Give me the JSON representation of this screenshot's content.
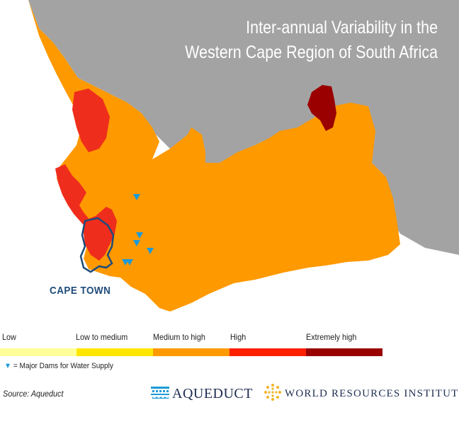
{
  "map": {
    "title_line1": "Inter-annual Variability in the",
    "title_line2": "Western Cape Region of South Africa",
    "city_label": "CAPE TOWN",
    "colors": {
      "land_outside": "#a3a3a3",
      "ocean": "#ffffff",
      "medium_to_high": "#ff9900",
      "high": "#ef2d1c",
      "extremely_high": "#9b0000",
      "cape_town_outline": "#1e4b7a",
      "dam": "#1c9ad6"
    },
    "dams_count": 6
  },
  "legend": {
    "categories": [
      {
        "label": "Low",
        "color": "#ffff99"
      },
      {
        "label": "Low to medium",
        "color": "#ffe600"
      },
      {
        "label": "Medium to high",
        "color": "#ff9900"
      },
      {
        "label": "High",
        "color": "#ff2000"
      },
      {
        "label": "Extremely high",
        "color": "#990000"
      }
    ],
    "dams_label": "= Major Dams for Water Supply"
  },
  "footer": {
    "source": "Source: Aqueduct",
    "aqueduct_logo": "AQUEDUCT",
    "wri_logo": "WORLD RESOURCES INSTITUTE"
  }
}
